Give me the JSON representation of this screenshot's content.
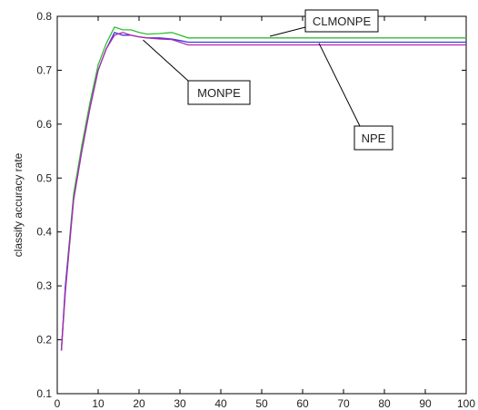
{
  "chart_data": {
    "type": "line",
    "xlabel": "",
    "ylabel": "classify accuracy rate",
    "xlim": [
      0,
      100
    ],
    "ylim": [
      0.1,
      0.8
    ],
    "xticks": [
      0,
      10,
      20,
      30,
      40,
      50,
      60,
      70,
      80,
      90,
      100
    ],
    "yticks": [
      0.1,
      0.2,
      0.3,
      0.4,
      0.5,
      0.6,
      0.7,
      0.8
    ],
    "xtick_labels": [
      "0",
      "10",
      "20",
      "30",
      "40",
      "50",
      "60",
      "70",
      "80",
      "90",
      "100"
    ],
    "ytick_labels": [
      "0.1",
      "0.2",
      "0.3",
      "0.4",
      "0.5",
      "0.6",
      "0.7",
      "0.8"
    ],
    "grid": false,
    "legend": "none",
    "series": [
      {
        "name": "CLMONPE",
        "color": "#2fbf2f",
        "x": [
          1,
          2,
          4,
          6,
          8,
          10,
          12,
          14,
          16,
          18,
          20,
          22,
          25,
          28,
          30,
          32,
          35,
          40,
          50,
          60,
          70,
          80,
          90,
          100
        ],
        "y": [
          0.18,
          0.3,
          0.47,
          0.56,
          0.64,
          0.71,
          0.75,
          0.78,
          0.775,
          0.775,
          0.77,
          0.767,
          0.768,
          0.77,
          0.765,
          0.76,
          0.76,
          0.76,
          0.76,
          0.76,
          0.76,
          0.76,
          0.76,
          0.76
        ]
      },
      {
        "name": "MONPE",
        "color": "#3b3bd6",
        "x": [
          1,
          2,
          4,
          6,
          8,
          10,
          12,
          14,
          16,
          18,
          20,
          22,
          25,
          28,
          30,
          32,
          35,
          40,
          50,
          60,
          70,
          80,
          90,
          100
        ],
        "y": [
          0.18,
          0.3,
          0.46,
          0.55,
          0.63,
          0.7,
          0.74,
          0.77,
          0.765,
          0.765,
          0.762,
          0.76,
          0.76,
          0.758,
          0.755,
          0.752,
          0.752,
          0.752,
          0.752,
          0.752,
          0.752,
          0.752,
          0.752,
          0.752
        ]
      },
      {
        "name": "NPE",
        "color": "#b02ab0",
        "x": [
          1,
          2,
          4,
          6,
          8,
          10,
          12,
          14,
          16,
          18,
          20,
          22,
          25,
          28,
          30,
          32,
          35,
          40,
          50,
          60,
          70,
          80,
          90,
          100
        ],
        "y": [
          0.18,
          0.29,
          0.46,
          0.55,
          0.63,
          0.7,
          0.74,
          0.765,
          0.77,
          0.765,
          0.762,
          0.76,
          0.758,
          0.757,
          0.752,
          0.747,
          0.747,
          0.747,
          0.747,
          0.747,
          0.747,
          0.747,
          0.747,
          0.747
        ]
      }
    ],
    "annotations": [
      {
        "text": "CLMONPE",
        "series": "CLMONPE",
        "arrow_to": [
          52,
          0.763
        ]
      },
      {
        "text": "MONPE",
        "series": "MONPE",
        "arrow_to": [
          21,
          0.756
        ]
      },
      {
        "text": "NPE",
        "series": "NPE",
        "arrow_to": [
          64,
          0.75
        ]
      }
    ]
  }
}
